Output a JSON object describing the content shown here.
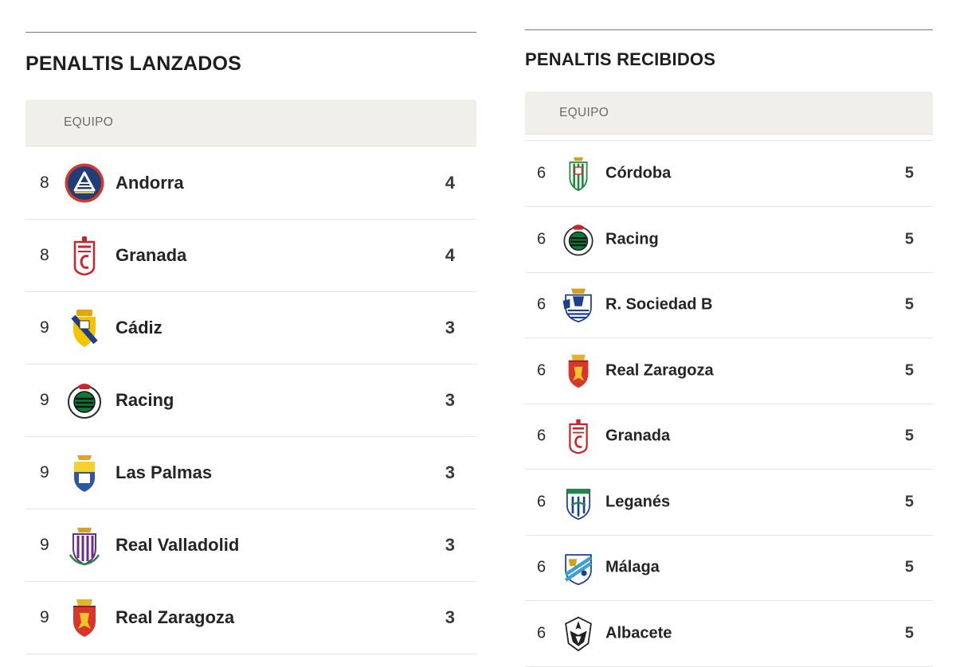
{
  "left": {
    "title": "PENALTIS LANZADOS",
    "column": "EQUIPO",
    "rows": [
      {
        "rank": "8",
        "team": "Andorra",
        "value": "4",
        "crest": "andorra-crest"
      },
      {
        "rank": "8",
        "team": "Granada",
        "value": "4",
        "crest": "granada-crest"
      },
      {
        "rank": "9",
        "team": "Cádiz",
        "value": "3",
        "crest": "cadiz-crest"
      },
      {
        "rank": "9",
        "team": "Racing",
        "value": "3",
        "crest": "racing-crest"
      },
      {
        "rank": "9",
        "team": "Las Palmas",
        "value": "3",
        "crest": "las-palmas-crest"
      },
      {
        "rank": "9",
        "team": "Real Valladolid",
        "value": "3",
        "crest": "valladolid-crest"
      },
      {
        "rank": "9",
        "team": "Real Zaragoza",
        "value": "3",
        "crest": "zaragoza-crest"
      }
    ]
  },
  "right": {
    "title": "PENALTIS RECIBIDOS",
    "column": "EQUIPO",
    "rows": [
      {
        "rank": "6",
        "team": "Córdoba",
        "value": "5",
        "crest": "cordoba-crest"
      },
      {
        "rank": "6",
        "team": "Racing",
        "value": "5",
        "crest": "racing-crest"
      },
      {
        "rank": "6",
        "team": "R. Sociedad B",
        "value": "5",
        "crest": "real-sociedad-crest"
      },
      {
        "rank": "6",
        "team": "Real Zaragoza",
        "value": "5",
        "crest": "zaragoza-crest"
      },
      {
        "rank": "6",
        "team": "Granada",
        "value": "5",
        "crest": "granada-crest"
      },
      {
        "rank": "6",
        "team": "Leganés",
        "value": "5",
        "crest": "leganes-crest"
      },
      {
        "rank": "6",
        "team": "Málaga",
        "value": "5",
        "crest": "malaga-crest"
      },
      {
        "rank": "6",
        "team": "Albacete",
        "value": "5",
        "crest": "albacete-crest"
      }
    ]
  },
  "colors": {
    "header_bg": "#f1efe9",
    "rule": "#777777",
    "row_border": "#e4e4e4",
    "text": "#242424"
  }
}
